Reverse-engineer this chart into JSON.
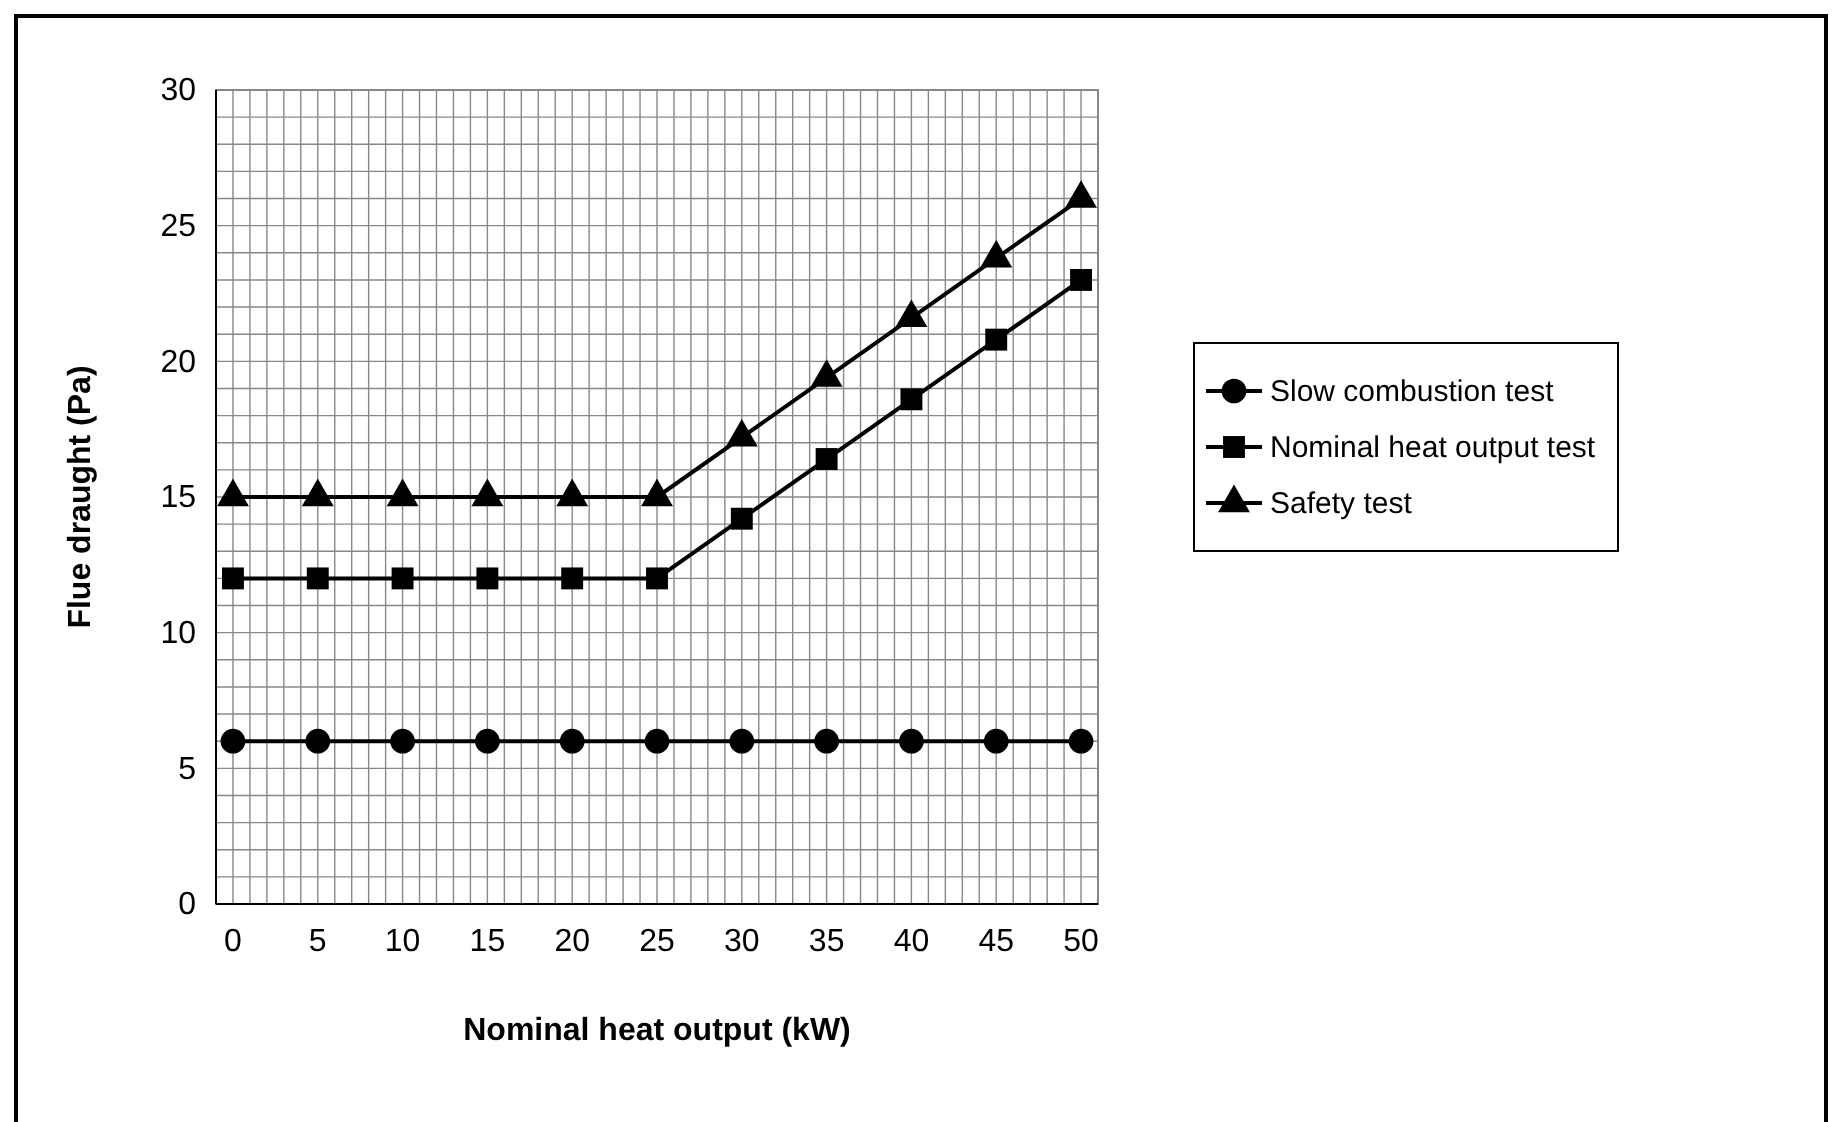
{
  "chart_data": {
    "type": "line",
    "xlabel": "Nominal heat output (kW)",
    "ylabel": "Flue draught (Pa)",
    "x": [
      0,
      5,
      10,
      15,
      20,
      25,
      30,
      35,
      40,
      45,
      50
    ],
    "series": [
      {
        "name": "Slow combustion test",
        "color": "#000000",
        "marker": "circle",
        "values": [
          6,
          6,
          6,
          6,
          6,
          6,
          6,
          6,
          6,
          6,
          6
        ]
      },
      {
        "name": "Nominal heat output test",
        "color": "#000000",
        "marker": "square",
        "values": [
          12,
          12,
          12,
          12,
          12,
          12,
          14.2,
          16.4,
          18.6,
          20.8,
          23
        ]
      },
      {
        "name": "Safety test",
        "color": "#000000",
        "marker": "triangle",
        "values": [
          15,
          15,
          15,
          15,
          15,
          15,
          17.2,
          19.4,
          21.6,
          23.8,
          26
        ]
      }
    ],
    "xlim": [
      -1,
      51
    ],
    "xticks": [
      0,
      {
        "value": 1,
        "label": null
      },
      {
        "value": 2,
        "label": null
      },
      {
        "value": 3,
        "label": null
      },
      {
        "value": 4,
        "label": null
      },
      5,
      {
        "value": 6,
        "label": null
      },
      {
        "value": 7,
        "label": null
      },
      {
        "value": 8,
        "label": null
      },
      {
        "value": 9,
        "label": null
      },
      10,
      {
        "value": 11,
        "label": null
      },
      {
        "value": 12,
        "label": null
      },
      {
        "value": 13,
        "label": null
      },
      {
        "value": 14,
        "label": null
      },
      15,
      {
        "value": 16,
        "label": null
      },
      {
        "value": 17,
        "label": null
      },
      {
        "value": 18,
        "label": null
      },
      {
        "value": 19,
        "label": null
      },
      20,
      {
        "value": 21,
        "label": null
      },
      {
        "value": 22,
        "label": null
      },
      {
        "value": 23,
        "label": null
      },
      {
        "value": 24,
        "label": null
      },
      25,
      {
        "value": 26,
        "label": null
      },
      {
        "value": 27,
        "label": null
      },
      {
        "value": 28,
        "label": null
      },
      {
        "value": 29,
        "label": null
      },
      30,
      {
        "value": 31,
        "label": null
      },
      {
        "value": 32,
        "label": null
      },
      {
        "value": 33,
        "label": null
      },
      {
        "value": 34,
        "label": null
      },
      35,
      {
        "value": 36,
        "label": null
      },
      {
        "value": 37,
        "label": null
      },
      {
        "value": 38,
        "label": null
      },
      {
        "value": 39,
        "label": null
      },
      40,
      {
        "value": 41,
        "label": null
      },
      {
        "value": 42,
        "label": null
      },
      {
        "value": 43,
        "label": null
      },
      {
        "value": 44,
        "label": null
      },
      45,
      {
        "value": 46,
        "label": null
      },
      {
        "value": 47,
        "label": null
      },
      {
        "value": 48,
        "label": null
      },
      {
        "value": 49,
        "label": null
      },
      50
    ],
    "ylim": [
      0,
      30
    ],
    "yticks": [
      0,
      {
        "value": 1,
        "label": null
      },
      {
        "value": 2,
        "label": null
      },
      {
        "value": 3,
        "label": null
      },
      {
        "value": 4,
        "label": null
      },
      5,
      {
        "value": 6,
        "label": null
      },
      {
        "value": 7,
        "label": null
      },
      {
        "value": 8,
        "label": null
      },
      {
        "value": 9,
        "label": null
      },
      10,
      {
        "value": 11,
        "label": null
      },
      {
        "value": 12,
        "label": null
      },
      {
        "value": 13,
        "label": null
      },
      {
        "value": 14,
        "label": null
      },
      15,
      {
        "value": 16,
        "label": null
      },
      {
        "value": 17,
        "label": null
      },
      {
        "value": 18,
        "label": null
      },
      {
        "value": 19,
        "label": null
      },
      20,
      {
        "value": 21,
        "label": null
      },
      {
        "value": 22,
        "label": null
      },
      {
        "value": 23,
        "label": null
      },
      {
        "value": 24,
        "label": null
      },
      25,
      {
        "value": 26,
        "label": null
      },
      {
        "value": 27,
        "label": null
      },
      {
        "value": 28,
        "label": null
      },
      {
        "value": 29,
        "label": null
      },
      30
    ],
    "grid": true,
    "legend": "right",
    "line_style": "solid"
  }
}
